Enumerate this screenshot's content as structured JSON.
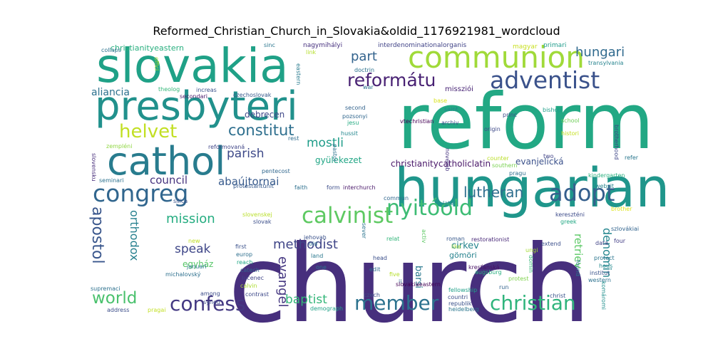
{
  "title": "Reformed_Christian_Church_in_Slovakia&oldid_1176921981_wordcloud",
  "chart_data": {
    "type": "wordcloud",
    "title": "Reformed_Christian_Church_in_Slovakia&oldid_1176921981_wordcloud",
    "words": [
      {
        "text": "church",
        "weight": 100,
        "color": "#472f7d"
      },
      {
        "text": "reform",
        "weight": 72,
        "color": "#22a884"
      },
      {
        "text": "hungarian",
        "weight": 52,
        "color": "#1f968b"
      },
      {
        "text": "slovakia",
        "weight": 45,
        "color": "#1fa187"
      },
      {
        "text": "presbyteri",
        "weight": 38,
        "color": "#21918c"
      },
      {
        "text": "cathol",
        "weight": 36,
        "color": "#287c8e"
      },
      {
        "text": "communion",
        "weight": 28,
        "color": "#a0da39"
      },
      {
        "text": "adventist",
        "weight": 22,
        "color": "#3b528b"
      },
      {
        "text": "congreg",
        "weight": 22,
        "color": "#31668e"
      },
      {
        "text": "calvinist",
        "weight": 20,
        "color": "#5ec962"
      },
      {
        "text": "nyitóold",
        "weight": 19,
        "color": "#3dbc74"
      },
      {
        "text": "adopt",
        "weight": 20,
        "color": "#355f8d"
      },
      {
        "text": "member",
        "weight": 19,
        "color": "#2c728e"
      },
      {
        "text": "christian",
        "weight": 19,
        "color": "#2fb47c"
      },
      {
        "text": "confess",
        "weight": 19,
        "color": "#443983"
      },
      {
        "text": "reformátu",
        "weight": 16,
        "color": "#482173"
      },
      {
        "text": "helvet",
        "weight": 16,
        "color": "#c2df23"
      },
      {
        "text": "hungari",
        "weight": 12,
        "color": "#306a8e"
      },
      {
        "text": "constitut",
        "weight": 13,
        "color": "#2e6f8e"
      },
      {
        "text": "apostol",
        "weight": 14,
        "color": "#39568c"
      },
      {
        "text": "world",
        "weight": 14,
        "color": "#4ac16d"
      },
      {
        "text": "lutheran",
        "weight": 12,
        "color": "#2e6e8e"
      },
      {
        "text": "part",
        "weight": 12,
        "color": "#33638d"
      },
      {
        "text": "mostli",
        "weight": 11,
        "color": "#1e9c89"
      },
      {
        "text": "parish",
        "weight": 11,
        "color": "#3e4a89"
      },
      {
        "text": "methodist",
        "weight": 11,
        "color": "#404688"
      },
      {
        "text": "mission",
        "weight": 11,
        "color": "#26ad81"
      },
      {
        "text": "orthodox",
        "weight": 10,
        "color": "#27808e"
      },
      {
        "text": "evangel",
        "weight": 11,
        "color": "#453781"
      },
      {
        "text": "baptist",
        "weight": 11,
        "color": "#34b679"
      },
      {
        "text": "speak",
        "weight": 10,
        "color": "#3f4788"
      },
      {
        "text": "denomin",
        "weight": 10,
        "color": "#24868e"
      },
      {
        "text": "retriev",
        "weight": 9,
        "color": "#5ac864"
      },
      {
        "text": "council",
        "weight": 9,
        "color": "#46327e"
      },
      {
        "text": "abaújtornai",
        "weight": 9,
        "color": "#375a8c"
      },
      {
        "text": "aliancia",
        "weight": 8,
        "color": "#2d718e"
      },
      {
        "text": "evanjelická",
        "weight": 7,
        "color": "#3b518b"
      },
      {
        "text": "christianitycatholiclatin",
        "weight": 7,
        "color": "#481668"
      },
      {
        "text": "barsi",
        "weight": 7,
        "color": "#2a788e"
      },
      {
        "text": "cirkev",
        "weight": 7,
        "color": "#25848e"
      },
      {
        "text": "debrecen",
        "weight": 7,
        "color": "#3f4889"
      },
      {
        "text": "gyülekezet",
        "weight": 7,
        "color": "#21a685"
      },
      {
        "text": "egyház",
        "weight": 7,
        "color": "#56c667"
      },
      {
        "text": "gömöri",
        "weight": 6,
        "color": "#26828e"
      },
      {
        "text": "christianityeastern",
        "weight": 6,
        "color": "#29af7f"
      },
      {
        "text": "missziói",
        "weight": 5,
        "color": "#482475"
      },
      {
        "text": "nagymihályi",
        "weight": 5,
        "color": "#46307e"
      },
      {
        "text": "interdenominationalorganis",
        "weight": 5,
        "color": "#404387"
      },
      {
        "text": "magyar",
        "weight": 4,
        "color": "#c8e020"
      },
      {
        "text": "primari",
        "weight": 5,
        "color": "#1e9b8a"
      },
      {
        "text": "transylvania",
        "weight": 5,
        "color": "#25838e"
      },
      {
        "text": "collaps",
        "weight": 4,
        "color": "#2c728e"
      },
      {
        "text": "sinc",
        "weight": 4,
        "color": "#2a768e"
      },
      {
        "text": "link",
        "weight": 4,
        "color": "#b5de2b"
      },
      {
        "text": "doctrin",
        "weight": 4,
        "color": "#2c738e"
      },
      {
        "text": "offici",
        "weight": 4,
        "color": "#aadc32"
      },
      {
        "text": "theolog",
        "weight": 4,
        "color": "#35b779"
      },
      {
        "text": "increas",
        "weight": 4,
        "color": "#3b528b"
      },
      {
        "text": "secondari",
        "weight": 4,
        "color": "#48186a"
      },
      {
        "text": "czechoslovak",
        "weight": 4,
        "color": "#38598c"
      },
      {
        "text": "eastern",
        "weight": 4,
        "color": "#297b8e"
      },
      {
        "text": "war",
        "weight": 4,
        "color": "#2d718e"
      },
      {
        "text": "second",
        "weight": 4,
        "color": "#33638d"
      },
      {
        "text": "pozsonyi",
        "weight": 4,
        "color": "#31678e"
      },
      {
        "text": "jesu",
        "weight": 4,
        "color": "#25ab82"
      },
      {
        "text": "base",
        "weight": 4,
        "color": "#d8e219"
      },
      {
        "text": "saint",
        "weight": 4,
        "color": "#26828e"
      },
      {
        "text": "bishop",
        "weight": 4,
        "color": "#1f9e89"
      },
      {
        "text": "archiv",
        "weight": 4,
        "color": "#3a548c"
      },
      {
        "text": "vtechristian",
        "weight": 4,
        "color": "#440154"
      },
      {
        "text": "princ",
        "weight": 4,
        "color": "#3e4c8a"
      },
      {
        "text": "origin",
        "weight": 4,
        "color": "#3e4a89"
      },
      {
        "text": "school",
        "weight": 4,
        "color": "#6ece58"
      },
      {
        "text": "histori",
        "weight": 4,
        "color": "#c5e021"
      },
      {
        "text": "brotherhood",
        "weight": 4,
        "color": "#3f4788"
      },
      {
        "text": "hussit",
        "weight": 4,
        "color": "#24878e"
      },
      {
        "text": "reformovaná",
        "weight": 4,
        "color": "#404688"
      },
      {
        "text": "rest",
        "weight": 4,
        "color": "#2f6c8e"
      },
      {
        "text": "zempléni",
        "weight": 4,
        "color": "#90d743"
      },
      {
        "text": "slovensku",
        "weight": 4,
        "color": "#472d7b"
      },
      {
        "text": "seminari",
        "weight": 4,
        "color": "#2c718e"
      },
      {
        "text": "pentecost",
        "weight": 4,
        "color": "#31678e"
      },
      {
        "text": "protestantunit",
        "weight": 4,
        "color": "#375b8d"
      },
      {
        "text": "faith",
        "weight": 4,
        "color": "#2d708e"
      },
      {
        "text": "form",
        "weight": 4,
        "color": "#3d4e8a"
      },
      {
        "text": "interchurch",
        "weight": 4,
        "color": "#481769"
      },
      {
        "text": "pastor",
        "weight": 4,
        "color": "#2c738e"
      },
      {
        "text": "novemb",
        "weight": 4,
        "color": "#46337f"
      },
      {
        "text": "counter",
        "weight": 4,
        "color": "#bade28"
      },
      {
        "text": "southern",
        "weight": 4,
        "color": "#7ad151"
      },
      {
        "text": "pragu",
        "weight": 4,
        "color": "#2e6d8e"
      },
      {
        "text": "two",
        "weight": 4,
        "color": "#414487"
      },
      {
        "text": "refer",
        "weight": 4,
        "color": "#2a778e"
      },
      {
        "text": "kindergarten",
        "weight": 4,
        "color": "#2ab07f"
      },
      {
        "text": "websit",
        "weight": 4,
        "color": "#25858e"
      },
      {
        "text": "silica",
        "weight": 4,
        "color": "#3a538b"
      },
      {
        "text": "commun",
        "weight": 4,
        "color": "#31678e"
      },
      {
        "text": "later",
        "weight": 4,
        "color": "#24868e"
      },
      {
        "text": "brother",
        "weight": 4,
        "color": "#dde318"
      },
      {
        "text": "kereszténi",
        "weight": 4,
        "color": "#3e4c8a"
      },
      {
        "text": "greek",
        "weight": 4,
        "color": "#22a884"
      },
      {
        "text": "szlovákiai",
        "weight": 4,
        "color": "#32648e"
      },
      {
        "text": "slovenskej",
        "weight": 4,
        "color": "#b8de29"
      },
      {
        "text": "slovak",
        "weight": 4,
        "color": "#3c4f8a"
      },
      {
        "text": "sever",
        "weight": 4,
        "color": "#2b748e"
      },
      {
        "text": "relat",
        "weight": 4,
        "color": "#32b67a"
      },
      {
        "text": "roman",
        "weight": 4,
        "color": "#38598c"
      },
      {
        "text": "like",
        "weight": 4,
        "color": "#9bd93c"
      },
      {
        "text": "restorationist",
        "weight": 4,
        "color": "#482878"
      },
      {
        "text": "extend",
        "weight": 4,
        "color": "#3c508b"
      },
      {
        "text": "data",
        "weight": 4,
        "color": "#404387"
      },
      {
        "text": "four",
        "weight": 4,
        "color": "#433e85"
      },
      {
        "text": "protect",
        "weight": 4,
        "color": "#2b758e"
      },
      {
        "text": "hous",
        "weight": 4,
        "color": "#23898e"
      },
      {
        "text": "new",
        "weight": 4,
        "color": "#c0df25"
      },
      {
        "text": "januari",
        "weight": 4,
        "color": "#2a788e"
      },
      {
        "text": "first",
        "weight": 4,
        "color": "#3b528b"
      },
      {
        "text": "europ",
        "weight": 4,
        "color": "#2e6f8e"
      },
      {
        "text": "reach",
        "weight": 4,
        "color": "#21a685"
      },
      {
        "text": "catech",
        "weight": 4,
        "color": "#33638d"
      },
      {
        "text": "lučenec",
        "weight": 4,
        "color": "#404588"
      },
      {
        "text": "jehovah",
        "weight": 4,
        "color": "#3b528b"
      },
      {
        "text": "old",
        "weight": 4,
        "color": "#2e6f8e"
      },
      {
        "text": "land",
        "weight": 4,
        "color": "#2a788e"
      },
      {
        "text": "one",
        "weight": 4,
        "color": "#2c738e"
      },
      {
        "text": "head",
        "weight": 4,
        "color": "#3c508b"
      },
      {
        "text": "edit",
        "weight": 4,
        "color": "#2e6d8e"
      },
      {
        "text": "activ",
        "weight": 4,
        "color": "#5cc863"
      },
      {
        "text": "ungi",
        "weight": 4,
        "color": "#a5db36"
      },
      {
        "text": "domin",
        "weight": 4,
        "color": "#35b779"
      },
      {
        "text": "western",
        "weight": 4,
        "color": "#2c718e"
      },
      {
        "text": "institut",
        "weight": 4,
        "color": "#3a538b"
      },
      {
        "text": "kresťanská",
        "weight": 4,
        "color": "#471063"
      },
      {
        "text": "augsburg",
        "weight": 4,
        "color": "#29af7f"
      },
      {
        "text": "five",
        "weight": 4,
        "color": "#b5de2b"
      },
      {
        "text": "ii",
        "weight": 4,
        "color": "#31688e"
      },
      {
        "text": "slovakiaeastern",
        "weight": 4,
        "color": "#440154"
      },
      {
        "text": "run",
        "weight": 4,
        "color": "#33638d"
      },
      {
        "text": "protest",
        "weight": 4,
        "color": "#7fd34e"
      },
      {
        "text": "found",
        "weight": 4,
        "color": "#2a778e"
      },
      {
        "text": "komáromi",
        "weight": 4,
        "color": "#218f8d"
      },
      {
        "text": "christ",
        "weight": 4,
        "color": "#3a538b"
      },
      {
        "text": "michalovský",
        "weight": 4,
        "color": "#2d708e"
      },
      {
        "text": "supremaci",
        "weight": 4,
        "color": "#2d718e"
      },
      {
        "text": "calvin",
        "weight": 4,
        "color": "#addc30"
      },
      {
        "text": "among",
        "weight": 4,
        "color": "#3d4d8a"
      },
      {
        "text": "contrast",
        "weight": 4,
        "color": "#3e4989"
      },
      {
        "text": "fellowship",
        "weight": 4,
        "color": "#1fa088"
      },
      {
        "text": "countri",
        "weight": 4,
        "color": "#3c4f8a"
      },
      {
        "text": "czech",
        "weight": 4,
        "color": "#3d4d8a"
      },
      {
        "text": "republik",
        "weight": 4,
        "color": "#3b528b"
      },
      {
        "text": "demograph",
        "weight": 4,
        "color": "#1fa187"
      },
      {
        "text": "heidelberg",
        "weight": 4,
        "color": "#2a768e"
      },
      {
        "text": "address",
        "weight": 4,
        "color": "#3d4e8a"
      },
      {
        "text": "pragai",
        "weight": 4,
        "color": "#c2df23"
      },
      {
        "text": "synod",
        "weight": 4,
        "color": "#3e4a89"
      }
    ]
  }
}
